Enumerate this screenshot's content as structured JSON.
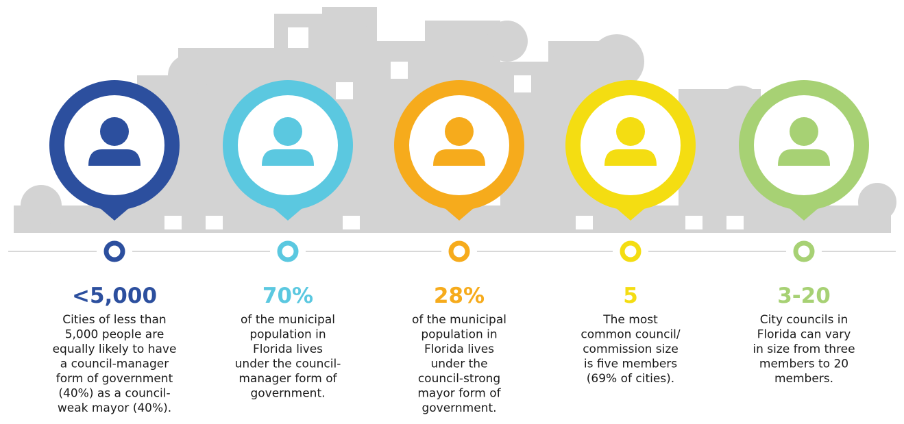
{
  "items": [
    {
      "stat": "<5,000",
      "color": "#2c4f9e",
      "lines": [
        "Cities of less than",
        "5,000 people are",
        "equally likely to have",
        "a council-manager",
        "form of government",
        "(40%) as a council-",
        "weak mayor (40%)."
      ]
    },
    {
      "stat": "70%",
      "color": "#5bc8e0",
      "lines": [
        "of the municipal",
        "population in",
        "Florida lives",
        "under the council-",
        "manager form of",
        "government."
      ]
    },
    {
      "stat": "28%",
      "color": "#f6ab1c",
      "lines": [
        "of the municipal",
        "population in",
        "Florida lives",
        "under the",
        "council-strong",
        "mayor form of",
        "government."
      ]
    },
    {
      "stat": "5",
      "color": "#f4dd12",
      "lines": [
        "The most",
        "common council/",
        "commission size",
        "is five members",
        "(69% of cities)."
      ]
    },
    {
      "stat": "3-20",
      "color": "#a7d174",
      "lines": [
        "City councils in",
        "Florida can vary",
        "in size from three",
        "members to 20",
        "members."
      ]
    }
  ]
}
